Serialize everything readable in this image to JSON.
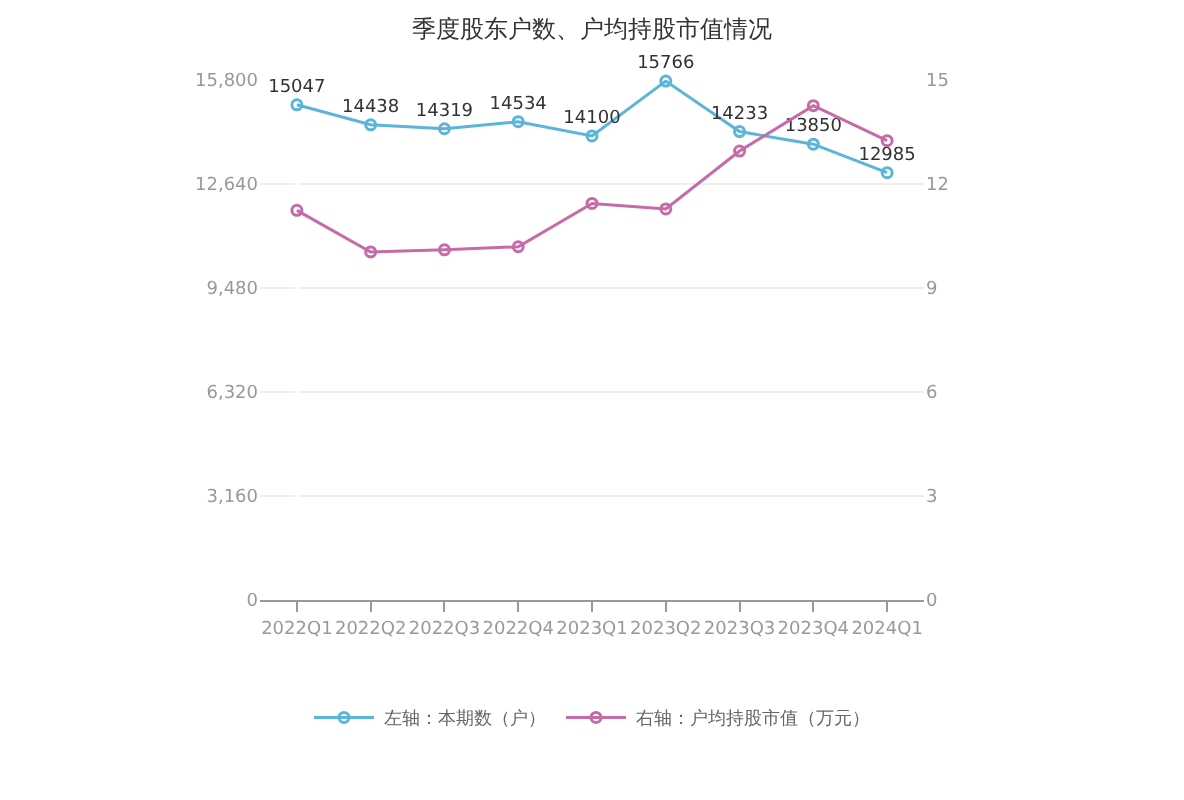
{
  "chart_data": {
    "type": "line",
    "title": "季度股东户数、户均持股市值情况",
    "categories": [
      "2022Q1",
      "2022Q2",
      "2022Q3",
      "2022Q4",
      "2023Q1",
      "2023Q2",
      "2023Q3",
      "2023Q4",
      "2024Q1"
    ],
    "series": [
      {
        "name": "左轴：本期数（户）",
        "color": "#5bb5d9",
        "values": [
          15047,
          14438,
          14319,
          14534,
          14100,
          15766,
          14233,
          13850,
          12985
        ],
        "value_labels": [
          "15047",
          "14438",
          "14319",
          "14534",
          "14100",
          "15766",
          "14233",
          "13850",
          "12985"
        ]
      },
      {
        "name": "右轴：户均持股市值（万元）",
        "color": "#c76aa8",
        "axis": "y2",
        "values": [
          11.24,
          10.04,
          10.1,
          10.19,
          11.44,
          11.28,
          12.95,
          14.26,
          13.25
        ]
      }
    ],
    "ylim": [
      0,
      15800
    ],
    "yticks": [
      {
        "value": 0,
        "label": "0"
      },
      {
        "value": 3160,
        "label": "3,160"
      },
      {
        "value": 6320,
        "label": "6,320"
      },
      {
        "value": 9480,
        "label": "9,480"
      },
      {
        "value": 12640,
        "label": "12,640"
      },
      {
        "value": 15800,
        "label": "15,800"
      }
    ],
    "y2lim": [
      0,
      15
    ],
    "y2ticks": [
      0,
      3,
      6,
      9,
      12,
      15
    ],
    "grid": "y",
    "legend": "bottom",
    "marker": "circle",
    "line_style": "solid"
  }
}
